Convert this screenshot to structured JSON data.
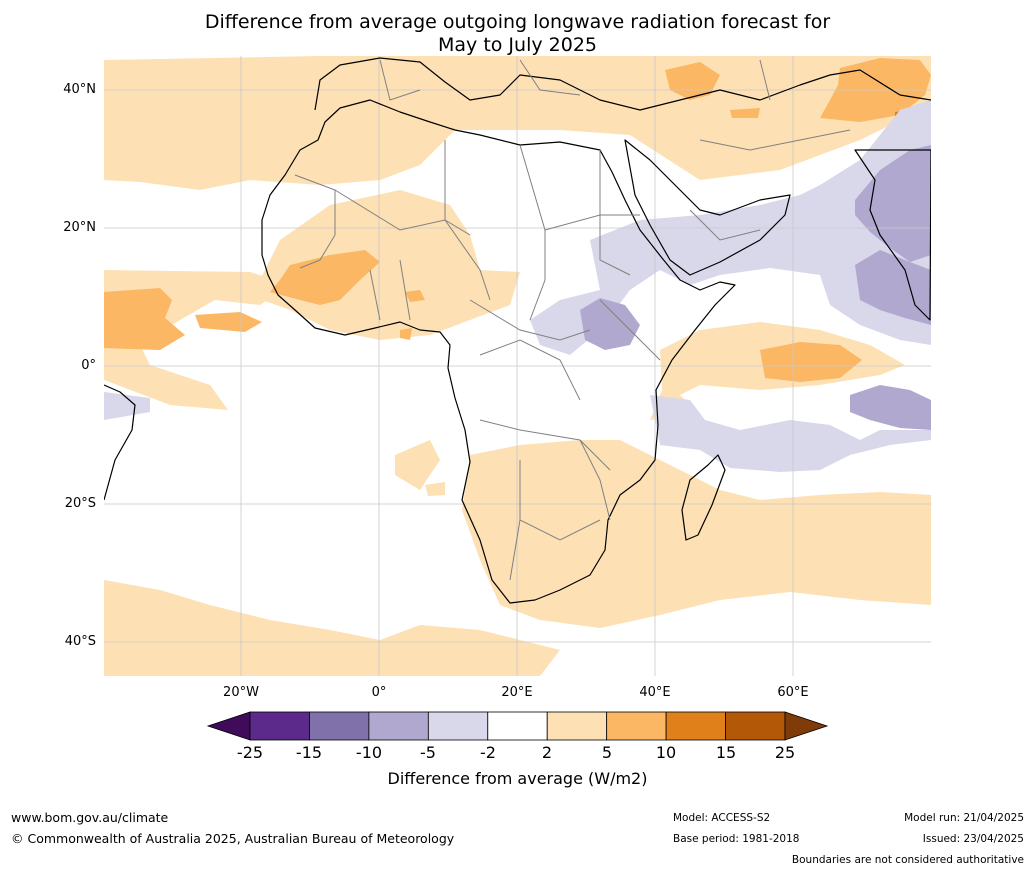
{
  "title": {
    "line1": "Difference from average outgoing longwave radiation forecast for",
    "line2": "May to July 2025"
  },
  "map": {
    "region": "Africa",
    "latitude_labels": [
      "40°N",
      "20°N",
      "0°",
      "20°S",
      "40°S"
    ],
    "longitude_labels": [
      "20°W",
      "0°",
      "20°E",
      "40°E",
      "60°E"
    ]
  },
  "colorbar": {
    "title": "Difference from average (W/m2)",
    "tick_labels": [
      "-25",
      "-15",
      "-10",
      "-5",
      "-2",
      "2",
      "5",
      "10",
      "15",
      "25"
    ],
    "colors": [
      "#3f0b5a",
      "#5b2a8a",
      "#8071ab",
      "#b1a8d0",
      "#d9d8ea",
      "#ffffff",
      "#fde0b4",
      "#fbb763",
      "#e0801a",
      "#b35806",
      "#7f3b08"
    ]
  },
  "footer": {
    "website": "www.bom.gov.au/climate",
    "copyright": "© Commonwealth of Australia 2025, Australian Bureau of Meteorology",
    "model": "Model: ACCESS-S2",
    "base_period": "Base period: 1981-2018",
    "model_run": "Model run: 21/04/2025",
    "issued": "Issued: 23/04/2025",
    "disclaimer": "Boundaries are not considered authoritative"
  }
}
